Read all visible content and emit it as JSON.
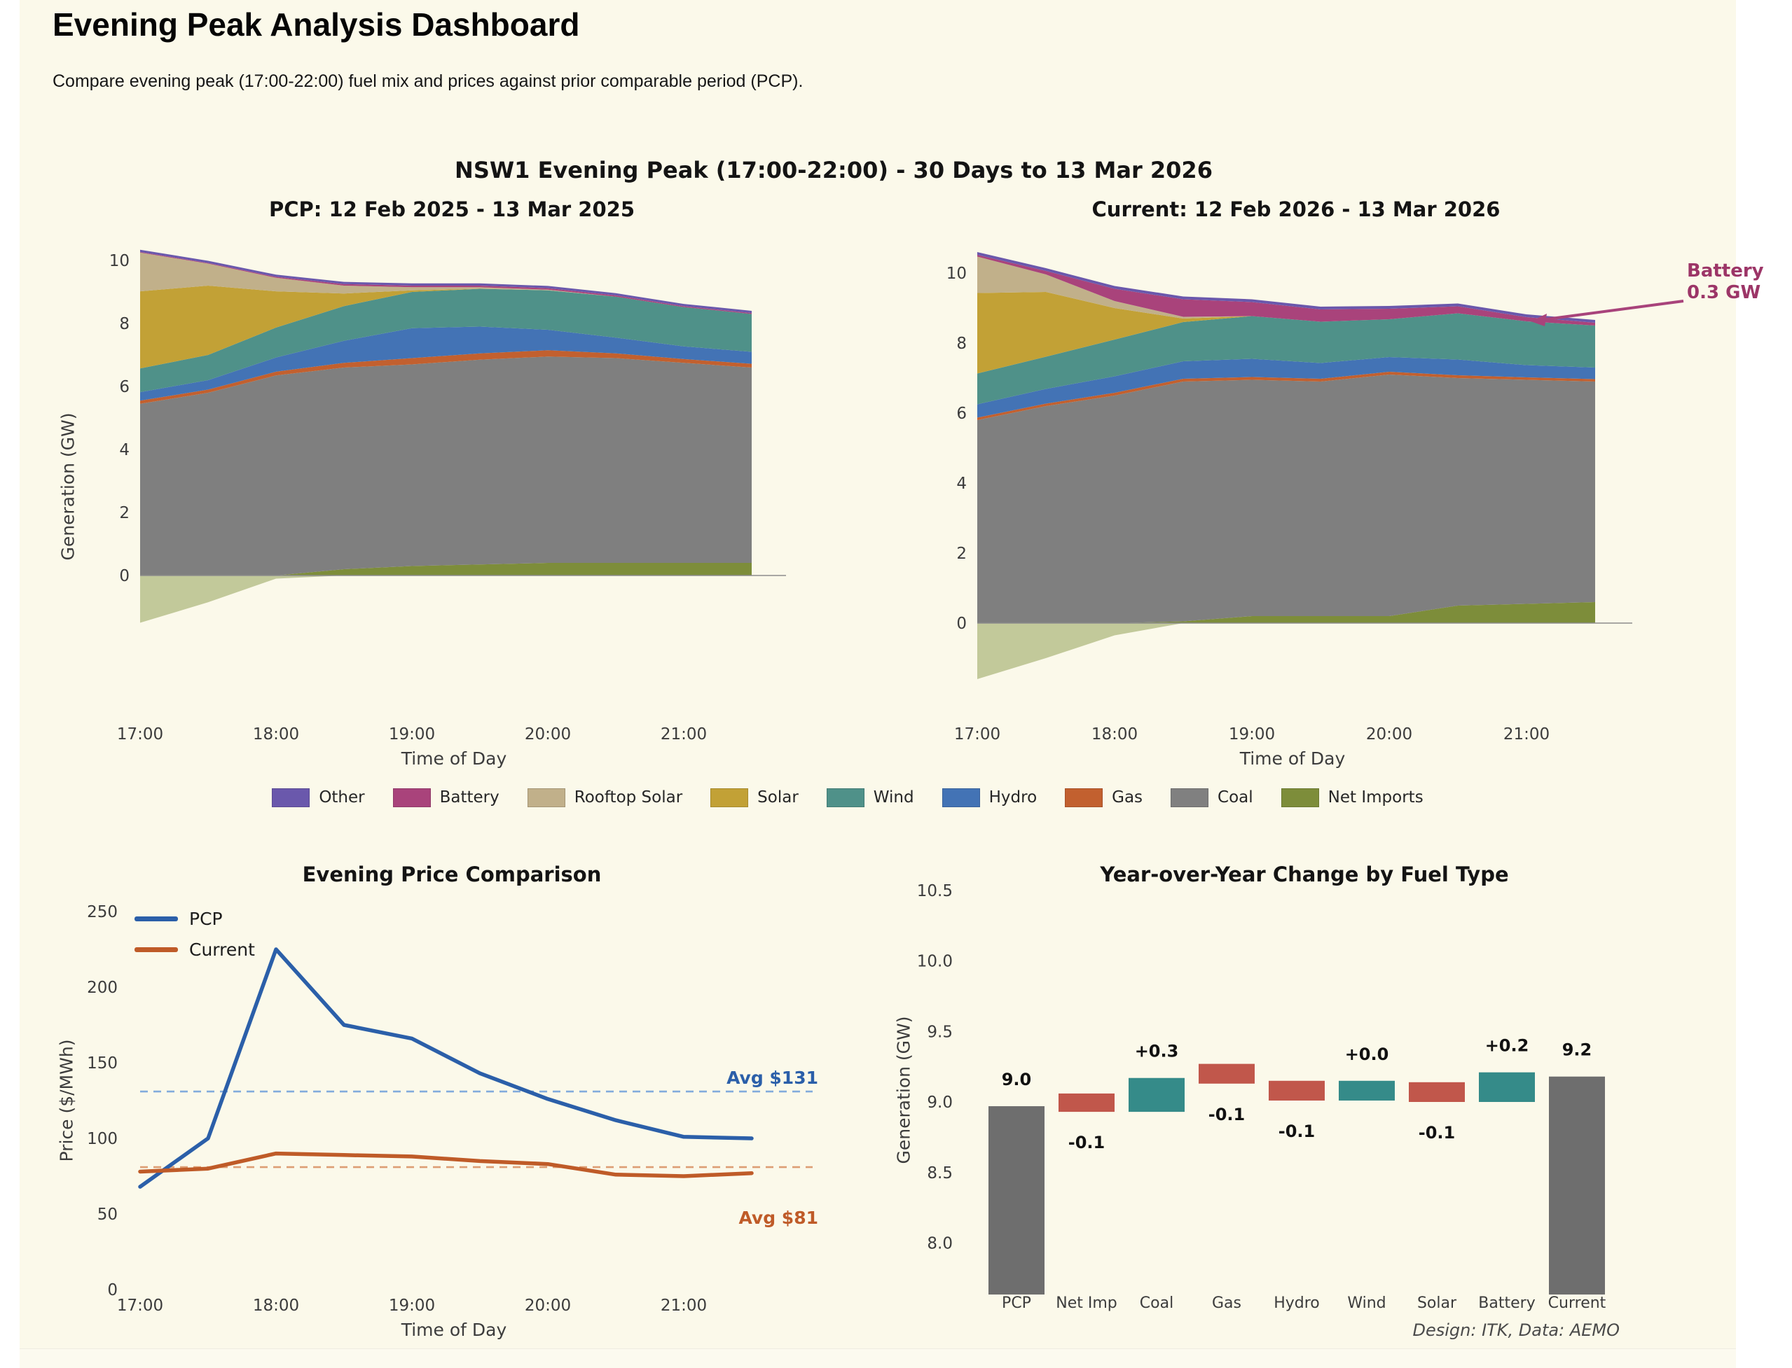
{
  "page": {
    "title": "Evening Peak Analysis Dashboard",
    "subtitle": "Compare evening peak (17:00-22:00) fuel mix and prices against prior comparable period (PCP).",
    "footer": "Design: ITK, Data: AEMO",
    "background": "#FBF9EA"
  },
  "figure": {
    "suptitle": "NSW1 Evening Peak (17:00-22:00) - 30 Days to 13 Mar 2026"
  },
  "annotation": {
    "line1": "Battery",
    "line2": "0.3 GW",
    "color": "#9C3567",
    "arrow_color": "#A8437B"
  },
  "legend": [
    {
      "label": "Other",
      "color": "#6A58AC"
    },
    {
      "label": "Battery",
      "color": "#A9437B"
    },
    {
      "label": "Rooftop Solar",
      "color": "#C1B08A"
    },
    {
      "label": "Solar",
      "color": "#C2A136"
    },
    {
      "label": "Wind",
      "color": "#4F9189"
    },
    {
      "label": "Hydro",
      "color": "#4373B5"
    },
    {
      "label": "Gas",
      "color": "#C2602F"
    },
    {
      "label": "Coal",
      "color": "#808080"
    },
    {
      "label": "Net Imports",
      "color": "#7D8D3A"
    }
  ],
  "chart_data": [
    {
      "type": "area",
      "title": "PCP: 12 Feb 2025 - 13 Mar 2025",
      "xlabel": "Time of Day",
      "ylabel": "Generation (GW)",
      "x": [
        17,
        17.5,
        18,
        18.5,
        19,
        19.5,
        20,
        20.5,
        21,
        21.5
      ],
      "xticklabels": [
        "17:00",
        "18:00",
        "19:00",
        "20:00",
        "21:00"
      ],
      "yticks": [
        0,
        2,
        4,
        6,
        8,
        10
      ],
      "series": [
        {
          "key": "net_imports",
          "name": "Net Imports",
          "color": "#7D8D3A",
          "values": [
            -1.5,
            -0.85,
            -0.1,
            0.2,
            0.3,
            0.35,
            0.4,
            0.4,
            0.4,
            0.4
          ]
        },
        {
          "key": "coal",
          "name": "Coal",
          "color": "#7F7F7F",
          "values": [
            5.45,
            5.8,
            6.35,
            6.4,
            6.4,
            6.5,
            6.55,
            6.5,
            6.35,
            6.2
          ]
        },
        {
          "key": "gas",
          "name": "Gas",
          "color": "#C2602F",
          "values": [
            0.1,
            0.1,
            0.12,
            0.15,
            0.2,
            0.2,
            0.2,
            0.15,
            0.12,
            0.12
          ]
        },
        {
          "key": "hydro",
          "name": "Hydro",
          "color": "#4373B5",
          "values": [
            0.27,
            0.3,
            0.45,
            0.7,
            0.95,
            0.85,
            0.65,
            0.5,
            0.4,
            0.38
          ]
        },
        {
          "key": "wind",
          "name": "Wind",
          "color": "#4F9189",
          "values": [
            0.75,
            0.8,
            0.95,
            1.1,
            1.15,
            1.2,
            1.25,
            1.3,
            1.25,
            1.2
          ]
        },
        {
          "key": "solar",
          "name": "Solar",
          "color": "#C2A136",
          "values": [
            2.45,
            2.2,
            1.15,
            0.4,
            0.05,
            0,
            0,
            0,
            0,
            0
          ]
        },
        {
          "key": "rooftop_solar",
          "name": "Rooftop Solar",
          "color": "#C1B08A",
          "values": [
            1.23,
            0.7,
            0.43,
            0.25,
            0.1,
            0.05,
            0.02,
            0,
            0,
            0
          ]
        },
        {
          "key": "battery",
          "name": "Battery",
          "color": "#A9437B",
          "values": [
            0.02,
            0.02,
            0.03,
            0.05,
            0.05,
            0.05,
            0.05,
            0.04,
            0.03,
            0.03
          ]
        },
        {
          "key": "other",
          "name": "Other",
          "color": "#6A58AC",
          "values": [
            0.07,
            0.07,
            0.07,
            0.07,
            0.07,
            0.07,
            0.07,
            0.07,
            0.07,
            0.07
          ]
        }
      ]
    },
    {
      "type": "area",
      "title": "Current: 12 Feb 2026 - 13 Mar 2026",
      "xlabel": "Time of Day",
      "ylabel": "",
      "x": [
        17,
        17.5,
        18,
        18.5,
        19,
        19.5,
        20,
        20.5,
        21,
        21.5
      ],
      "xticklabels": [
        "17:00",
        "18:00",
        "19:00",
        "20:00",
        "21:00"
      ],
      "yticks": [
        0,
        2,
        4,
        6,
        8,
        10
      ],
      "series": [
        {
          "key": "net_imports",
          "name": "Net Imports",
          "color": "#7D8D3A",
          "values": [
            -1.6,
            -1.0,
            -0.35,
            0.05,
            0.2,
            0.2,
            0.2,
            0.5,
            0.55,
            0.6
          ]
        },
        {
          "key": "coal",
          "name": "Coal",
          "color": "#7F7F7F",
          "values": [
            5.8,
            6.2,
            6.5,
            6.85,
            6.75,
            6.7,
            6.9,
            6.5,
            6.4,
            6.3
          ]
        },
        {
          "key": "gas",
          "name": "Gas",
          "color": "#C2602F",
          "values": [
            0.07,
            0.07,
            0.08,
            0.08,
            0.08,
            0.08,
            0.08,
            0.08,
            0.07,
            0.07
          ]
        },
        {
          "key": "hydro",
          "name": "Hydro",
          "color": "#4373B5",
          "values": [
            0.38,
            0.42,
            0.47,
            0.5,
            0.52,
            0.45,
            0.42,
            0.45,
            0.35,
            0.33
          ]
        },
        {
          "key": "wind",
          "name": "Wind",
          "color": "#4F9189",
          "values": [
            0.88,
            0.92,
            1.05,
            1.12,
            1.22,
            1.18,
            1.08,
            1.32,
            1.25,
            1.2
          ]
        },
        {
          "key": "solar",
          "name": "Solar",
          "color": "#C2A136",
          "values": [
            2.3,
            1.85,
            0.9,
            0.1,
            0,
            0,
            0,
            0,
            0,
            0
          ]
        },
        {
          "key": "rooftop_solar",
          "name": "Rooftop Solar",
          "color": "#C1B08A",
          "values": [
            1.04,
            0.5,
            0.2,
            0.05,
            0,
            0,
            0,
            0,
            0,
            0
          ]
        },
        {
          "key": "battery",
          "name": "Battery",
          "color": "#A9437B",
          "values": [
            0.05,
            0.1,
            0.35,
            0.5,
            0.4,
            0.35,
            0.3,
            0.2,
            0.12,
            0.08
          ]
        },
        {
          "key": "other",
          "name": "Other",
          "color": "#6A58AC",
          "values": [
            0.08,
            0.08,
            0.08,
            0.08,
            0.08,
            0.08,
            0.08,
            0.08,
            0.08,
            0.08
          ]
        }
      ]
    },
    {
      "type": "line",
      "title": "Evening Price Comparison",
      "xlabel": "Time of Day",
      "ylabel": "Price ($/MWh)",
      "x": [
        17,
        17.5,
        18,
        18.5,
        19,
        19.5,
        20,
        20.5,
        21,
        21.5
      ],
      "xticklabels": [
        "17:00",
        "18:00",
        "19:00",
        "20:00",
        "21:00"
      ],
      "yticks": [
        0,
        50,
        100,
        150,
        200,
        250
      ],
      "series": [
        {
          "name": "PCP",
          "color": "#2B5FA9",
          "values": [
            68,
            100,
            225,
            175,
            166,
            143,
            126,
            112,
            101,
            100
          ]
        },
        {
          "name": "Current",
          "color": "#BF5B28",
          "values": [
            78,
            80,
            90,
            89,
            88,
            85,
            83,
            76,
            75,
            77
          ]
        }
      ],
      "avg_lines": [
        {
          "label": "Avg $131",
          "value": 131,
          "line_color": "#82ABDC",
          "text_color": "#2B5FA9"
        },
        {
          "label": "Avg $81",
          "value": 81,
          "line_color": "#DD9E74",
          "text_color": "#BF5B28"
        }
      ]
    },
    {
      "type": "waterfall",
      "title": "Year-over-Year Change by Fuel Type",
      "ylabel": "Generation (GW)",
      "yticklabels": [
        "8.0",
        "8.5",
        "9.0",
        "9.5",
        "10.0",
        "10.5"
      ],
      "ytick_values": [
        8.0,
        8.5,
        9.0,
        9.5,
        10.0,
        10.5
      ],
      "categories": [
        "PCP",
        "Net Imp",
        "Coal",
        "Gas",
        "Hydro",
        "Wind",
        "Solar",
        "Battery",
        "Current"
      ],
      "bars": [
        {
          "cat": "PCP",
          "from": 7.635,
          "to": 8.97,
          "color": "#6E6E6E",
          "label": "9.0",
          "label_pos": "above"
        },
        {
          "cat": "Net Imp",
          "from": 8.93,
          "to": 9.06,
          "color": "#C1574B",
          "label": "-0.1",
          "label_pos": "below"
        },
        {
          "cat": "Coal",
          "from": 8.93,
          "to": 9.17,
          "color": "#358B89",
          "label": "+0.3",
          "label_pos": "above"
        },
        {
          "cat": "Gas",
          "from": 9.13,
          "to": 9.27,
          "color": "#C1574B",
          "label": "-0.1",
          "label_pos": "below"
        },
        {
          "cat": "Hydro",
          "from": 9.01,
          "to": 9.15,
          "color": "#C1574B",
          "label": "-0.1",
          "label_pos": "below"
        },
        {
          "cat": "Wind",
          "from": 9.01,
          "to": 9.15,
          "color": "#358B89",
          "label": "+0.0",
          "label_pos": "above"
        },
        {
          "cat": "Solar",
          "from": 9.0,
          "to": 9.14,
          "color": "#C1574B",
          "label": "-0.1",
          "label_pos": "below"
        },
        {
          "cat": "Battery",
          "from": 9.0,
          "to": 9.21,
          "color": "#358B89",
          "label": "+0.2",
          "label_pos": "above"
        },
        {
          "cat": "Current",
          "from": 7.635,
          "to": 9.18,
          "color": "#6E6E6E",
          "label": "9.2",
          "label_pos": "above"
        }
      ]
    }
  ]
}
